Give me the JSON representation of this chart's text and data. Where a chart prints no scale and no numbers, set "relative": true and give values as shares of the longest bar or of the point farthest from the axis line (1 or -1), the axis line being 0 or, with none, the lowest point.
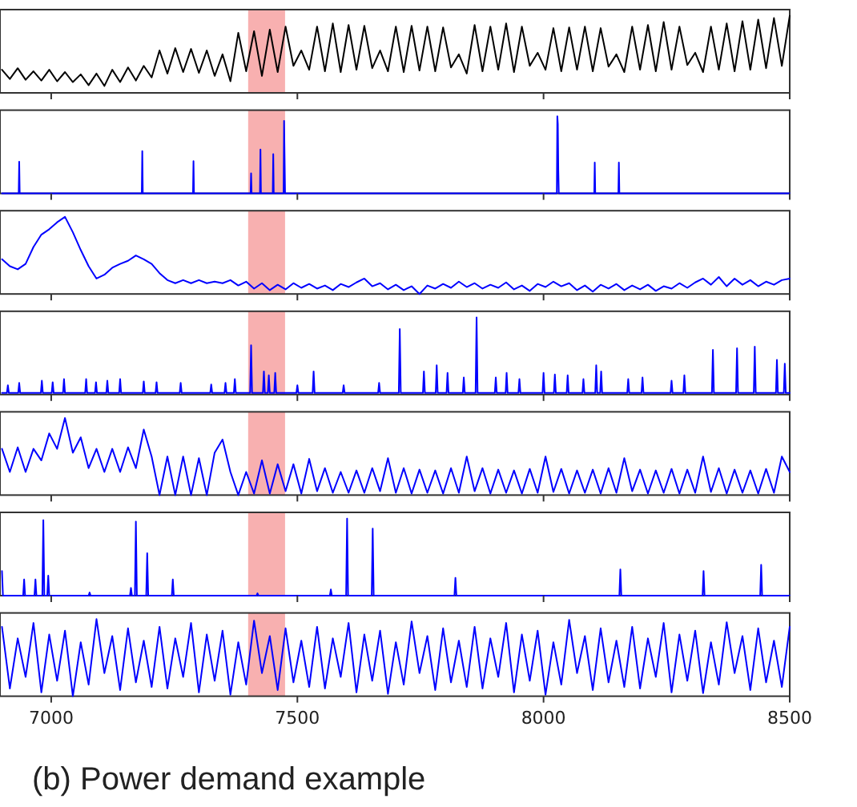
{
  "chart_data": [
    {
      "type": "line",
      "relative": true,
      "xlim": [
        6896,
        8500
      ],
      "xticks": [
        7000,
        7500,
        8000,
        8500
      ],
      "tick_labels": false,
      "bands": [
        {
          "axis": "x",
          "from": 7400,
          "to": 7475,
          "color": "#f8b0b0"
        }
      ],
      "x": [
        6900,
        6916,
        6932,
        6948,
        6964,
        6980,
        6996,
        7012,
        7028,
        7044,
        7060,
        7076,
        7092,
        7108,
        7124,
        7140,
        7156,
        7172,
        7188,
        7204,
        7220,
        7236,
        7252,
        7268,
        7284,
        7300,
        7316,
        7332,
        7348,
        7364,
        7380,
        7396,
        7412,
        7428,
        7444,
        7460,
        7476,
        7492,
        7508,
        7524,
        7540,
        7556,
        7572,
        7588,
        7604,
        7620,
        7636,
        7652,
        7668,
        7684,
        7700,
        7716,
        7732,
        7748,
        7764,
        7780,
        7796,
        7812,
        7828,
        7844,
        7860,
        7876,
        7892,
        7908,
        7924,
        7940,
        7956,
        7972,
        7988,
        8004,
        8020,
        8036,
        8052,
        8068,
        8084,
        8100,
        8116,
        8132,
        8148,
        8164,
        8180,
        8196,
        8212,
        8228,
        8244,
        8260,
        8276,
        8292,
        8308,
        8324,
        8340,
        8356,
        8372,
        8388,
        8404,
        8420,
        8436,
        8452,
        8468,
        8484,
        8500
      ],
      "series": [
        {
          "color": "#000000",
          "values": [
            0.3,
            0.18,
            0.32,
            0.17,
            0.28,
            0.16,
            0.3,
            0.15,
            0.27,
            0.14,
            0.24,
            0.1,
            0.25,
            0.09,
            0.3,
            0.14,
            0.33,
            0.16,
            0.35,
            0.2,
            0.55,
            0.25,
            0.58,
            0.27,
            0.57,
            0.26,
            0.55,
            0.22,
            0.5,
            0.15,
            0.78,
            0.28,
            0.8,
            0.22,
            0.82,
            0.27,
            0.86,
            0.35,
            0.55,
            0.3,
            0.86,
            0.28,
            0.9,
            0.27,
            0.88,
            0.3,
            0.87,
            0.32,
            0.55,
            0.28,
            0.86,
            0.27,
            0.87,
            0.29,
            0.86,
            0.28,
            0.85,
            0.33,
            0.5,
            0.25,
            0.88,
            0.28,
            0.86,
            0.3,
            0.9,
            0.27,
            0.86,
            0.35,
            0.52,
            0.3,
            0.84,
            0.28,
            0.85,
            0.3,
            0.86,
            0.28,
            0.84,
            0.34,
            0.5,
            0.27,
            0.86,
            0.3,
            0.88,
            0.28,
            0.92,
            0.3,
            0.86,
            0.36,
            0.52,
            0.27,
            0.86,
            0.3,
            0.9,
            0.28,
            0.93,
            0.3,
            0.95,
            0.32,
            0.97,
            0.35,
            1.0
          ]
        }
      ]
    },
    {
      "type": "line",
      "relative": true,
      "xlim": [
        6896,
        8500
      ],
      "xticks": [
        7000,
        7500,
        8000,
        8500
      ],
      "tick_labels": false,
      "bands": [
        {
          "axis": "x",
          "from": 7400,
          "to": 7475,
          "color": "#f8b0b0"
        }
      ],
      "x": [
        6900,
        6934,
        6935,
        6936,
        7184,
        7185,
        7186,
        7288,
        7289,
        7290,
        7405,
        7406,
        7407,
        7424,
        7425,
        7426,
        7450,
        7451,
        7452,
        7472,
        7473,
        7474,
        7475,
        8027,
        8028,
        8029,
        8030,
        8031,
        8103,
        8104,
        8105,
        8152,
        8153,
        8154,
        8500
      ],
      "series": [
        {
          "color": "#0000ff",
          "values": [
            0,
            0,
            0.41,
            0,
            0,
            0.55,
            0,
            0,
            0.42,
            0,
            0,
            0.26,
            0,
            0,
            0.57,
            0,
            0,
            0.51,
            0,
            0,
            0.94,
            0.47,
            0,
            0,
            1.0,
            0.9,
            0.3,
            0,
            0,
            0.4,
            0,
            0,
            0.4,
            0,
            0
          ]
        }
      ]
    },
    {
      "type": "line",
      "relative": true,
      "xlim": [
        6896,
        8500
      ],
      "xticks": [
        7000,
        7500,
        8000,
        8500
      ],
      "tick_labels": false,
      "bands": [
        {
          "axis": "x",
          "from": 7400,
          "to": 7475,
          "color": "#f8b0b0"
        }
      ],
      "x": [
        6900,
        6916,
        6932,
        6948,
        6964,
        6980,
        6996,
        7012,
        7028,
        7044,
        7060,
        7076,
        7092,
        7108,
        7124,
        7140,
        7156,
        7172,
        7188,
        7204,
        7220,
        7236,
        7252,
        7268,
        7284,
        7300,
        7316,
        7332,
        7348,
        7364,
        7380,
        7396,
        7412,
        7428,
        7444,
        7460,
        7476,
        7492,
        7508,
        7524,
        7540,
        7556,
        7572,
        7588,
        7604,
        7620,
        7636,
        7652,
        7668,
        7684,
        7700,
        7716,
        7732,
        7748,
        7764,
        7780,
        7796,
        7812,
        7828,
        7844,
        7860,
        7876,
        7892,
        7908,
        7924,
        7940,
        7956,
        7972,
        7988,
        8004,
        8020,
        8036,
        8052,
        8068,
        8084,
        8100,
        8116,
        8132,
        8148,
        8164,
        8180,
        8196,
        8212,
        8228,
        8244,
        8260,
        8276,
        8292,
        8308,
        8324,
        8340,
        8356,
        8372,
        8388,
        8404,
        8420,
        8436,
        8452,
        8468,
        8484,
        8500
      ],
      "series": [
        {
          "color": "#0000ff",
          "values": [
            0.45,
            0.36,
            0.32,
            0.39,
            0.61,
            0.77,
            0.84,
            0.93,
            1.0,
            0.8,
            0.57,
            0.36,
            0.2,
            0.25,
            0.34,
            0.39,
            0.43,
            0.5,
            0.45,
            0.39,
            0.27,
            0.18,
            0.14,
            0.18,
            0.14,
            0.18,
            0.14,
            0.16,
            0.14,
            0.18,
            0.11,
            0.16,
            0.07,
            0.14,
            0.05,
            0.12,
            0.06,
            0.14,
            0.08,
            0.13,
            0.07,
            0.11,
            0.05,
            0.13,
            0.09,
            0.15,
            0.2,
            0.1,
            0.14,
            0.06,
            0.12,
            0.05,
            0.1,
            0.0,
            0.11,
            0.07,
            0.13,
            0.08,
            0.16,
            0.09,
            0.14,
            0.07,
            0.12,
            0.08,
            0.15,
            0.06,
            0.11,
            0.04,
            0.13,
            0.09,
            0.16,
            0.1,
            0.14,
            0.05,
            0.11,
            0.03,
            0.12,
            0.07,
            0.13,
            0.05,
            0.11,
            0.06,
            0.12,
            0.04,
            0.1,
            0.07,
            0.14,
            0.08,
            0.15,
            0.2,
            0.12,
            0.22,
            0.1,
            0.2,
            0.12,
            0.18,
            0.1,
            0.16,
            0.12,
            0.18,
            0.2
          ]
        }
      ]
    },
    {
      "type": "line",
      "relative": true,
      "xlim": [
        6896,
        8500
      ],
      "xticks": [
        7000,
        7500,
        8000,
        8500
      ],
      "tick_labels": false,
      "bands": [
        {
          "axis": "x",
          "from": 7400,
          "to": 7475,
          "color": "#f8b0b0"
        }
      ],
      "x": [
        6900,
        6910,
        6912,
        6914,
        6933,
        6935,
        6937,
        6979,
        6981,
        6983,
        7001,
        7003,
        7005,
        7024,
        7026,
        7028,
        7069,
        7071,
        7073,
        7089,
        7091,
        7093,
        7112,
        7114,
        7116,
        7138,
        7140,
        7142,
        7186,
        7188,
        7190,
        7212,
        7214,
        7216,
        7261,
        7263,
        7265,
        7323,
        7325,
        7327,
        7352,
        7354,
        7356,
        7371,
        7373,
        7375,
        7404,
        7406,
        7408,
        7430,
        7432,
        7434,
        7440,
        7442,
        7444,
        7453,
        7455,
        7457,
        7498,
        7500,
        7502,
        7531,
        7533,
        7535,
        7592,
        7594,
        7596,
        7664,
        7666,
        7668,
        7706,
        7708,
        7710,
        7755,
        7757,
        7759,
        7781,
        7783,
        7785,
        7803,
        7805,
        7807,
        7836,
        7838,
        7840,
        7862,
        7864,
        7866,
        7901,
        7903,
        7905,
        7923,
        7925,
        7927,
        7949,
        7951,
        7953,
        7998,
        8000,
        8002,
        8021,
        8023,
        8025,
        8047,
        8049,
        8051,
        8079,
        8081,
        8083,
        8105,
        8107,
        8109,
        8115,
        8117,
        8119,
        8170,
        8172,
        8174,
        8199,
        8201,
        8203,
        8258,
        8260,
        8262,
        8284,
        8286,
        8288,
        8342,
        8344,
        8346,
        8391,
        8393,
        8395,
        8427,
        8429,
        8431,
        8472,
        8474,
        8476,
        8488,
        8490,
        8492,
        8500
      ],
      "series": [
        {
          "color": "#0000ff",
          "values": [
            0.02,
            0.02,
            0.12,
            0.02,
            0.02,
            0.15,
            0.02,
            0.02,
            0.18,
            0.02,
            0.02,
            0.16,
            0.02,
            0.02,
            0.2,
            0.02,
            0.02,
            0.2,
            0.02,
            0.02,
            0.16,
            0.02,
            0.02,
            0.18,
            0.02,
            0.02,
            0.2,
            0.02,
            0.02,
            0.17,
            0.02,
            0.02,
            0.16,
            0.02,
            0.02,
            0.15,
            0.02,
            0.02,
            0.13,
            0.02,
            0.02,
            0.15,
            0.02,
            0.02,
            0.2,
            0.02,
            0.02,
            0.64,
            0.02,
            0.02,
            0.3,
            0.02,
            0.02,
            0.25,
            0.02,
            0.02,
            0.28,
            0.02,
            0.02,
            0.12,
            0.02,
            0.02,
            0.3,
            0.02,
            0.02,
            0.12,
            0.02,
            0.02,
            0.15,
            0.02,
            0.02,
            0.85,
            0.02,
            0.02,
            0.3,
            0.02,
            0.02,
            0.38,
            0.02,
            0.02,
            0.28,
            0.02,
            0.02,
            0.22,
            0.02,
            0.02,
            1.0,
            0.02,
            0.02,
            0.22,
            0.02,
            0.02,
            0.28,
            0.02,
            0.02,
            0.2,
            0.02,
            0.02,
            0.28,
            0.02,
            0.02,
            0.26,
            0.02,
            0.02,
            0.25,
            0.02,
            0.02,
            0.2,
            0.02,
            0.02,
            0.38,
            0.02,
            0.02,
            0.3,
            0.02,
            0.02,
            0.2,
            0.02,
            0.02,
            0.22,
            0.02,
            0.02,
            0.18,
            0.02,
            0.02,
            0.25,
            0.02,
            0.02,
            0.58,
            0.02,
            0.02,
            0.6,
            0.02,
            0.02,
            0.62,
            0.02,
            0.02,
            0.45,
            0.02,
            0.02,
            0.4,
            0.02,
            0.02
          ]
        }
      ]
    },
    {
      "type": "line",
      "relative": true,
      "xlim": [
        6896,
        8500
      ],
      "xticks": [
        7000,
        7500,
        8000,
        8500
      ],
      "tick_labels": false,
      "bands": [
        {
          "axis": "x",
          "from": 7400,
          "to": 7475,
          "color": "#f8b0b0"
        }
      ],
      "x": [
        6900,
        6916,
        6932,
        6948,
        6964,
        6980,
        6996,
        7012,
        7028,
        7044,
        7060,
        7076,
        7092,
        7108,
        7124,
        7140,
        7156,
        7172,
        7188,
        7204,
        7220,
        7236,
        7252,
        7268,
        7284,
        7300,
        7316,
        7332,
        7348,
        7364,
        7380,
        7396,
        7412,
        7428,
        7444,
        7460,
        7476,
        7492,
        7508,
        7524,
        7540,
        7556,
        7572,
        7588,
        7604,
        7620,
        7636,
        7652,
        7668,
        7684,
        7700,
        7716,
        7732,
        7748,
        7764,
        7780,
        7796,
        7812,
        7828,
        7844,
        7860,
        7876,
        7892,
        7908,
        7924,
        7940,
        7956,
        7972,
        7988,
        8004,
        8020,
        8036,
        8052,
        8068,
        8084,
        8100,
        8116,
        8132,
        8148,
        8164,
        8180,
        8196,
        8212,
        8228,
        8244,
        8260,
        8276,
        8292,
        8308,
        8324,
        8340,
        8356,
        8372,
        8388,
        8404,
        8420,
        8436,
        8452,
        8468,
        8484,
        8500
      ],
      "series": [
        {
          "color": "#0000ff",
          "values": [
            0.6,
            0.3,
            0.62,
            0.3,
            0.6,
            0.45,
            0.8,
            0.6,
            1.0,
            0.55,
            0.75,
            0.35,
            0.6,
            0.3,
            0.6,
            0.3,
            0.62,
            0.35,
            0.85,
            0.5,
            0.0,
            0.5,
            0.0,
            0.5,
            0.0,
            0.48,
            0.0,
            0.55,
            0.72,
            0.3,
            0.0,
            0.3,
            0.02,
            0.45,
            0.02,
            0.4,
            0.05,
            0.4,
            0.02,
            0.47,
            0.05,
            0.35,
            0.03,
            0.3,
            0.03,
            0.32,
            0.03,
            0.35,
            0.05,
            0.48,
            0.03,
            0.35,
            0.02,
            0.33,
            0.03,
            0.32,
            0.02,
            0.35,
            0.03,
            0.5,
            0.05,
            0.35,
            0.02,
            0.33,
            0.03,
            0.32,
            0.02,
            0.34,
            0.03,
            0.5,
            0.04,
            0.34,
            0.02,
            0.32,
            0.03,
            0.33,
            0.02,
            0.35,
            0.03,
            0.48,
            0.05,
            0.33,
            0.02,
            0.32,
            0.03,
            0.34,
            0.02,
            0.33,
            0.03,
            0.5,
            0.04,
            0.35,
            0.02,
            0.33,
            0.03,
            0.32,
            0.02,
            0.34,
            0.03,
            0.5,
            0.3
          ]
        }
      ]
    },
    {
      "type": "line",
      "relative": true,
      "xlim": [
        6896,
        8500
      ],
      "xticks": [
        7000,
        7500,
        8000,
        8500
      ],
      "tick_labels": false,
      "bands": [
        {
          "axis": "x",
          "from": 7400,
          "to": 7475,
          "color": "#f8b0b0"
        }
      ],
      "x": [
        6900,
        6902,
        6943,
        6945,
        6947,
        6966,
        6968,
        6970,
        6982,
        6984,
        6986,
        6992,
        6994,
        6996,
        7076,
        7078,
        7080,
        7160,
        7162,
        7164,
        7170,
        7172,
        7174,
        7193,
        7195,
        7197,
        7245,
        7247,
        7249,
        7417,
        7419,
        7421,
        7566,
        7568,
        7570,
        7599,
        7601,
        7603,
        7651,
        7653,
        7655,
        7819,
        7821,
        7823,
        8154,
        8156,
        8158,
        8323,
        8325,
        8327,
        8440,
        8442,
        8444,
        8500
      ],
      "series": [
        {
          "color": "#0000ff",
          "values": [
            0.32,
            0,
            0,
            0.21,
            0,
            0,
            0.21,
            0,
            0,
            0.98,
            0,
            0,
            0.26,
            0,
            0,
            0.04,
            0,
            0,
            0.1,
            0,
            0,
            0.96,
            0,
            0,
            0.55,
            0,
            0,
            0.21,
            0,
            0,
            0.03,
            0,
            0,
            0.08,
            0,
            0,
            1.0,
            0,
            0,
            0.87,
            0,
            0,
            0.23,
            0,
            0,
            0.34,
            0,
            0,
            0.32,
            0,
            0,
            0.4,
            0,
            0
          ]
        }
      ]
    },
    {
      "type": "line",
      "relative": true,
      "xlim": [
        6896,
        8500
      ],
      "xticks": [
        7000,
        7500,
        8000,
        8500
      ],
      "tick_labels": "x",
      "bands": [
        {
          "axis": "x",
          "from": 7400,
          "to": 7475,
          "color": "#f8b0b0"
        }
      ],
      "annotations": [
        "(b) Power demand example"
      ],
      "x": [
        6900,
        6916,
        6932,
        6948,
        6964,
        6980,
        6996,
        7012,
        7028,
        7044,
        7060,
        7076,
        7092,
        7108,
        7124,
        7140,
        7156,
        7172,
        7188,
        7204,
        7220,
        7236,
        7252,
        7268,
        7284,
        7300,
        7316,
        7332,
        7348,
        7364,
        7380,
        7396,
        7412,
        7428,
        7444,
        7460,
        7476,
        7492,
        7508,
        7524,
        7540,
        7556,
        7572,
        7588,
        7604,
        7620,
        7636,
        7652,
        7668,
        7684,
        7700,
        7716,
        7732,
        7748,
        7764,
        7780,
        7796,
        7812,
        7828,
        7844,
        7860,
        7876,
        7892,
        7908,
        7924,
        7940,
        7956,
        7972,
        7988,
        8004,
        8020,
        8036,
        8052,
        8068,
        8084,
        8100,
        8116,
        8132,
        8148,
        8164,
        8180,
        8196,
        8212,
        8228,
        8244,
        8260,
        8276,
        8292,
        8308,
        8324,
        8340,
        8356,
        8372,
        8388,
        8404,
        8420,
        8436,
        8452,
        8468,
        8484,
        8500
      ],
      "series": [
        {
          "color": "#0000ff",
          "values": [
            0.9,
            0.1,
            0.75,
            0.25,
            0.95,
            0.05,
            0.8,
            0.2,
            0.85,
            0.0,
            0.7,
            0.15,
            1.0,
            0.3,
            0.78,
            0.08,
            0.88,
            0.18,
            0.72,
            0.12,
            0.9,
            0.1,
            0.75,
            0.25,
            0.95,
            0.05,
            0.8,
            0.2,
            0.85,
            0.02,
            0.7,
            0.15,
            0.98,
            0.3,
            0.78,
            0.08,
            0.88,
            0.18,
            0.72,
            0.12,
            0.9,
            0.1,
            0.75,
            0.25,
            0.95,
            0.05,
            0.8,
            0.2,
            0.85,
            0.03,
            0.7,
            0.15,
            0.97,
            0.3,
            0.78,
            0.08,
            0.88,
            0.18,
            0.72,
            0.12,
            0.9,
            0.1,
            0.75,
            0.25,
            0.95,
            0.05,
            0.8,
            0.2,
            0.85,
            0.02,
            0.7,
            0.15,
            0.99,
            0.3,
            0.78,
            0.08,
            0.88,
            0.18,
            0.72,
            0.12,
            0.9,
            0.1,
            0.75,
            0.25,
            0.95,
            0.05,
            0.8,
            0.2,
            0.85,
            0.04,
            0.7,
            0.15,
            0.96,
            0.3,
            0.78,
            0.08,
            0.88,
            0.18,
            0.72,
            0.12,
            0.9
          ]
        }
      ]
    }
  ]
}
